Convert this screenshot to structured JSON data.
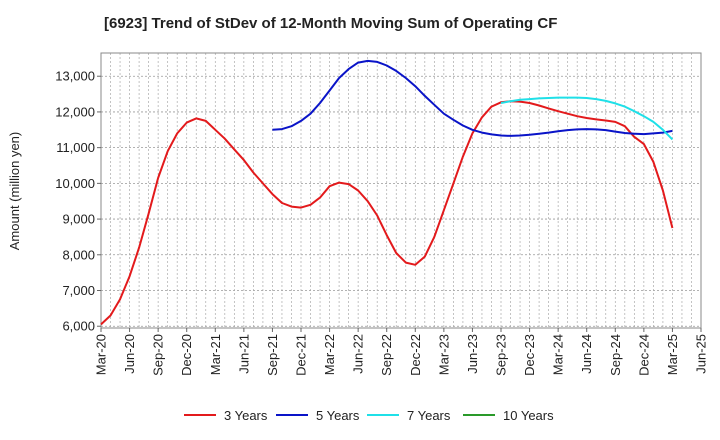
{
  "chart_data": {
    "type": "line",
    "title": "[6923]  Trend of StDev of 12-Month Moving Sum of Operating CF",
    "ylabel": "Amount (million yen)",
    "xlabel": "",
    "ylim": [
      5950,
      13650
    ],
    "yticks": [
      6000,
      7000,
      8000,
      9000,
      10000,
      11000,
      12000,
      13000
    ],
    "ytick_labels": [
      "6,000",
      "7,000",
      "8,000",
      "9,000",
      "10,000",
      "11,000",
      "12,000",
      "13,000"
    ],
    "xticks": [
      "Mar-20",
      "Jun-20",
      "Sep-20",
      "Dec-20",
      "Mar-21",
      "Jun-21",
      "Sep-21",
      "Dec-21",
      "Mar-22",
      "Jun-22",
      "Sep-22",
      "Dec-22",
      "Mar-23",
      "Jun-23",
      "Sep-23",
      "Dec-23",
      "Mar-24",
      "Jun-24",
      "Sep-24",
      "Dec-24",
      "Mar-25",
      "Jun-25"
    ],
    "grid": true,
    "legend_position": "bottom",
    "series": [
      {
        "name": "3 Years",
        "color": "#e31a1c",
        "x": [
          "Mar-20",
          "Apr-20",
          "May-20",
          "Jun-20",
          "Jul-20",
          "Aug-20",
          "Sep-20",
          "Oct-20",
          "Nov-20",
          "Dec-20",
          "Jan-21",
          "Feb-21",
          "Mar-21",
          "Apr-21",
          "May-21",
          "Jun-21",
          "Jul-21",
          "Aug-21",
          "Sep-21",
          "Oct-21",
          "Nov-21",
          "Dec-21",
          "Jan-22",
          "Feb-22",
          "Mar-22",
          "Apr-22",
          "May-22",
          "Jun-22",
          "Jul-22",
          "Aug-22",
          "Sep-22",
          "Oct-22",
          "Nov-22",
          "Dec-22",
          "Jan-23",
          "Feb-23",
          "Mar-23",
          "Apr-23",
          "May-23",
          "Jun-23",
          "Jul-23",
          "Aug-23",
          "Sep-23",
          "Oct-23",
          "Nov-23",
          "Dec-23",
          "Jan-24",
          "Feb-24",
          "Mar-24",
          "Apr-24",
          "May-24",
          "Jun-24",
          "Jul-24",
          "Aug-24",
          "Sep-24",
          "Oct-24",
          "Nov-24",
          "Dec-24",
          "Jan-25",
          "Feb-25",
          "Mar-25"
        ],
        "values": [
          6050,
          6300,
          6750,
          7400,
          8200,
          9150,
          10150,
          10900,
          11400,
          11700,
          11820,
          11750,
          11500,
          11250,
          10950,
          10650,
          10300,
          10000,
          9700,
          9450,
          9350,
          9320,
          9400,
          9600,
          9920,
          10020,
          9980,
          9800,
          9500,
          9100,
          8550,
          8050,
          7780,
          7720,
          7950,
          8500,
          9250,
          10000,
          10750,
          11400,
          11850,
          12150,
          12270,
          12300,
          12290,
          12250,
          12180,
          12100,
          12020,
          11950,
          11880,
          11830,
          11790,
          11760,
          11720,
          11600,
          11300,
          11100,
          10600,
          9800,
          8750
        ]
      },
      {
        "name": "5 Years",
        "color": "#0a14c8",
        "x": [
          "Sep-21",
          "Oct-21",
          "Nov-21",
          "Dec-21",
          "Jan-22",
          "Feb-22",
          "Mar-22",
          "Apr-22",
          "May-22",
          "Jun-22",
          "Jul-22",
          "Aug-22",
          "Sep-22",
          "Oct-22",
          "Nov-22",
          "Dec-22",
          "Jan-23",
          "Feb-23",
          "Mar-23",
          "Apr-23",
          "May-23",
          "Jun-23",
          "Jul-23",
          "Aug-23",
          "Sep-23",
          "Oct-23",
          "Nov-23",
          "Dec-23",
          "Jan-24",
          "Feb-24",
          "Mar-24",
          "Apr-24",
          "May-24",
          "Jun-24",
          "Jul-24",
          "Aug-24",
          "Sep-24",
          "Oct-24",
          "Nov-24",
          "Dec-24",
          "Jan-25",
          "Feb-25",
          "Mar-25"
        ],
        "values": [
          11500,
          11520,
          11600,
          11750,
          11950,
          12250,
          12600,
          12950,
          13200,
          13380,
          13430,
          13400,
          13300,
          13150,
          12950,
          12720,
          12450,
          12200,
          11950,
          11780,
          11620,
          11500,
          11420,
          11370,
          11340,
          11330,
          11340,
          11360,
          11390,
          11420,
          11460,
          11490,
          11510,
          11520,
          11510,
          11490,
          11450,
          11410,
          11390,
          11380,
          11400,
          11420,
          11470
        ]
      },
      {
        "name": "7 Years",
        "color": "#1fe0e8",
        "x": [
          "Sep-23",
          "Oct-23",
          "Nov-23",
          "Dec-23",
          "Jan-24",
          "Feb-24",
          "Mar-24",
          "Apr-24",
          "May-24",
          "Jun-24",
          "Jul-24",
          "Aug-24",
          "Sep-24",
          "Oct-24",
          "Nov-24",
          "Dec-24",
          "Jan-25",
          "Feb-25",
          "Mar-25"
        ],
        "values": [
          12250,
          12300,
          12340,
          12360,
          12380,
          12390,
          12400,
          12400,
          12400,
          12390,
          12360,
          12310,
          12240,
          12150,
          12020,
          11880,
          11720,
          11500,
          11230
        ]
      },
      {
        "name": "10 Years",
        "color": "#2a9a2a",
        "x": [],
        "values": []
      }
    ]
  }
}
